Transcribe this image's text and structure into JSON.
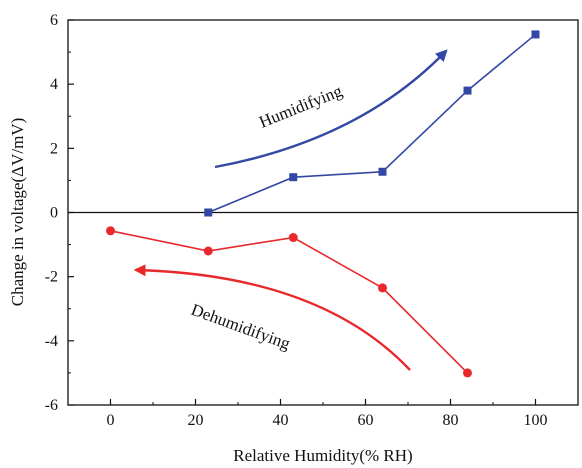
{
  "chart_data": {
    "type": "line",
    "xlabel": "Relative Humidity(% RH)",
    "ylabel": "Change in voltage(ΔV/mV)",
    "xlim": [
      -10,
      110
    ],
    "ylim": [
      -6,
      6
    ],
    "x_ticks": [
      0,
      20,
      40,
      60,
      80,
      100
    ],
    "y_ticks": [
      -6,
      -4,
      -2,
      0,
      2,
      4,
      6
    ],
    "x_tick_labels": [
      "0",
      "20",
      "40",
      "60",
      "80",
      "100"
    ],
    "y_tick_labels": [
      "-6",
      "-4",
      "-2",
      "0",
      "2",
      "4",
      "6"
    ],
    "zero_line": true,
    "grid": false,
    "series": [
      {
        "color": "#3347a5",
        "marker": "square",
        "x": [
          23,
          43,
          64,
          84,
          100
        ],
        "y": [
          0.0,
          1.1,
          1.27,
          3.8,
          5.55
        ]
      },
      {
        "color": "#e8282b",
        "marker": "circle",
        "x": [
          0,
          23,
          43,
          64,
          84
        ],
        "y": [
          -0.57,
          -1.2,
          -0.78,
          -2.35,
          -5.0
        ]
      }
    ],
    "annotations": [
      {
        "text": "Humidifying",
        "color": "#3347a5",
        "arrow_direction": "up-right"
      },
      {
        "text": "Dehumidifying",
        "color": "#e8282b",
        "arrow_direction": "left"
      }
    ]
  }
}
